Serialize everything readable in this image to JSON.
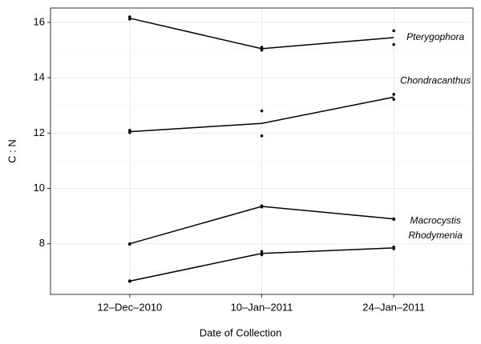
{
  "chart_data": {
    "type": "line",
    "x_label": "Date of Collection",
    "y_label": "C : N",
    "categories": [
      "12–Dec–2010",
      "10–Jan–2011",
      "24–Jan–2011"
    ],
    "series": [
      {
        "name": "Pterygophora",
        "color": "#000000",
        "values": [
          16.15,
          15.05,
          15.45
        ],
        "points": [
          [
            16.2,
            16.12
          ],
          [
            15.1,
            15.0
          ],
          [
            15.7,
            15.2
          ]
        ]
      },
      {
        "name": "Chondracanthus",
        "color": "#000000",
        "values": [
          12.05,
          12.35,
          13.3
        ],
        "points": [
          [
            12.1,
            12.02
          ],
          [
            12.8,
            11.9
          ],
          [
            13.4,
            13.22
          ]
        ]
      },
      {
        "name": "Macrocystis",
        "color": "#000000",
        "values": [
          8.0,
          9.35,
          8.9
        ],
        "points": [
          [
            8.0,
            7.98
          ],
          [
            9.37,
            9.33
          ],
          [
            8.9,
            8.88
          ]
        ]
      },
      {
        "name": "Rhodymenia",
        "color": "#000000",
        "values": [
          6.65,
          7.65,
          7.85
        ],
        "points": [
          [
            6.66,
            6.64
          ],
          [
            7.72,
            7.6
          ],
          [
            7.88,
            7.82
          ]
        ]
      }
    ],
    "ylim": [
      6.17,
      16.52
    ],
    "yticks": [
      8,
      10,
      12,
      14,
      16
    ],
    "yminor": [
      7,
      9,
      11,
      13,
      15
    ],
    "grid": true
  }
}
